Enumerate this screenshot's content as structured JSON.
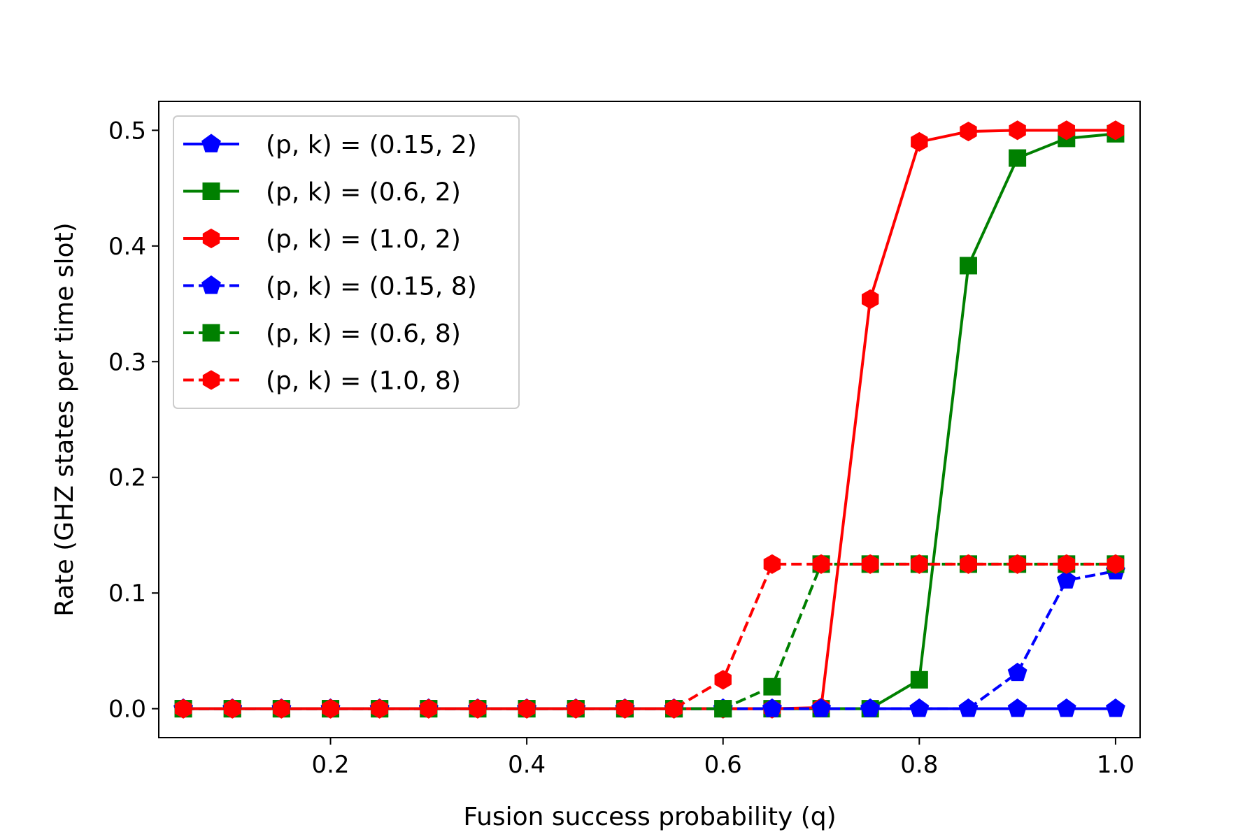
{
  "chart_data": {
    "type": "line",
    "title": "",
    "xlabel": "Fusion success probability (q)",
    "ylabel": "Rate (GHZ states per time slot)",
    "xlim": [
      0.025,
      1.025
    ],
    "ylim": [
      -0.025,
      0.525
    ],
    "xticks": [
      "0.2",
      "0.4",
      "0.6",
      "0.8",
      "1.0"
    ],
    "yticks": [
      "0.0",
      "0.1",
      "0.2",
      "0.3",
      "0.4",
      "0.5"
    ],
    "grid": false,
    "legend_position": "upper-left",
    "x": [
      0.05,
      0.1,
      0.15,
      0.2,
      0.25,
      0.3,
      0.35,
      0.4,
      0.45,
      0.5,
      0.55,
      0.6,
      0.65,
      0.7,
      0.75,
      0.8,
      0.85,
      0.9,
      0.95,
      1.0
    ],
    "series": [
      {
        "name": "(p, k) = (0.15, 2)",
        "color": "#0000ff",
        "linestyle": "solid",
        "marker": "pentagon",
        "values": [
          0,
          0,
          0,
          0,
          0,
          0,
          0,
          0,
          0,
          0,
          0,
          0,
          0,
          0,
          0,
          0,
          0,
          0,
          0,
          0
        ]
      },
      {
        "name": "(p, k) = (0.6, 2)",
        "color": "#008000",
        "linestyle": "solid",
        "marker": "square",
        "values": [
          0,
          0,
          0,
          0,
          0,
          0,
          0,
          0,
          0,
          0,
          0,
          0,
          0,
          0,
          0,
          0.025,
          0.383,
          0.476,
          0.493,
          0.497
        ]
      },
      {
        "name": "(p, k) = (1.0, 2)",
        "color": "#ff0000",
        "linestyle": "solid",
        "marker": "hexagon",
        "values": [
          0,
          0,
          0,
          0,
          0,
          0,
          0,
          0,
          0,
          0,
          0,
          0,
          0,
          0.001,
          0.354,
          0.49,
          0.499,
          0.5,
          0.5,
          0.5
        ]
      },
      {
        "name": "(p, k) = (0.15, 8)",
        "color": "#0000ff",
        "linestyle": "dashed",
        "marker": "pentagon",
        "values": [
          0,
          0,
          0,
          0,
          0,
          0,
          0,
          0,
          0,
          0,
          0,
          0,
          0,
          0,
          0,
          0,
          0,
          0.031,
          0.111,
          0.119
        ]
      },
      {
        "name": "(p, k) = (0.6, 8)",
        "color": "#008000",
        "linestyle": "dashed",
        "marker": "square",
        "values": [
          0,
          0,
          0,
          0,
          0,
          0,
          0,
          0,
          0,
          0,
          0,
          0,
          0.019,
          0.125,
          0.125,
          0.125,
          0.125,
          0.125,
          0.125,
          0.125
        ]
      },
      {
        "name": "(p, k) = (1.0, 8)",
        "color": "#ff0000",
        "linestyle": "dashed",
        "marker": "hexagon",
        "values": [
          0,
          0,
          0,
          0,
          0,
          0,
          0,
          0,
          0,
          0,
          0,
          0.025,
          0.125,
          0.125,
          0.125,
          0.125,
          0.125,
          0.125,
          0.125,
          0.125
        ]
      }
    ]
  }
}
